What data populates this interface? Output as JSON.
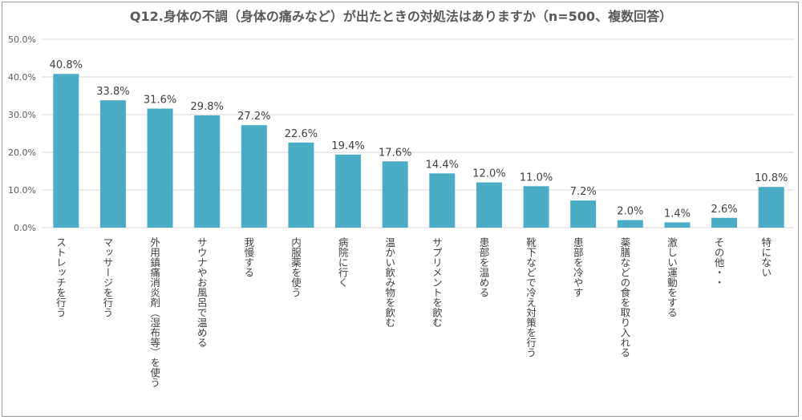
{
  "chart_data": {
    "type": "bar",
    "title": "Q12.身体の不調（身体の痛みなど）が出たときの対処法はありますか（n=500、複数回答）",
    "categories": [
      "ストレッチを行う",
      "マッサージを行う",
      "外用鎮痛消炎剤（湿布等）を使う",
      "サウナやお風呂で温める",
      "我慢する",
      "内服薬を使う",
      "病院に行く",
      "温かい飲み物を飲む",
      "サプリメントを飲む",
      "患部を温める",
      "靴下などで冷え対策を行う",
      "患部を冷やす",
      "薬膳などの食を取り入れる",
      "激しい運動をする",
      "その他・・",
      "特にない"
    ],
    "values": [
      40.8,
      33.8,
      31.6,
      29.8,
      27.2,
      22.6,
      19.4,
      17.6,
      14.4,
      12.0,
      11.0,
      7.2,
      2.0,
      1.4,
      2.6,
      10.8
    ],
    "value_labels": [
      "40.8%",
      "33.8%",
      "31.6%",
      "29.8%",
      "27.2%",
      "22.6%",
      "19.4%",
      "17.6%",
      "14.4%",
      "12.0%",
      "11.0%",
      "7.2%",
      "2.0%",
      "1.4%",
      "2.6%",
      "10.8%"
    ],
    "ylim": [
      0,
      50
    ],
    "yticks": [
      "0.0%",
      "10.0%",
      "20.0%",
      "30.0%",
      "40.0%",
      "50.0%"
    ],
    "grid": true,
    "bar_color": "#4bacc6",
    "grid_color": "#d9d9d9"
  }
}
